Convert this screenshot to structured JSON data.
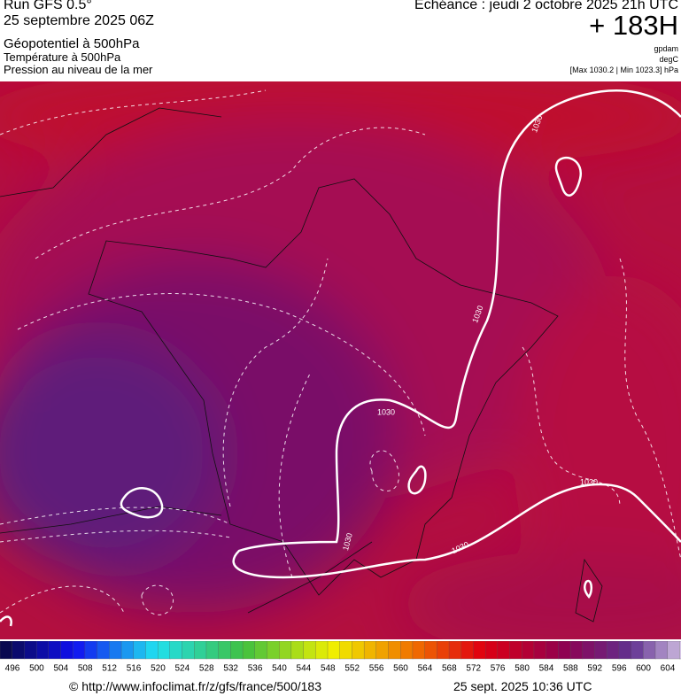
{
  "header": {
    "run": "Run GFS 0.5°",
    "run_date": "25 septembre 2025 06Z",
    "field_1": "Géopotentiel à 500hPa",
    "field_2": "Température à 500hPa",
    "field_3": "Pression au niveau de la mer",
    "forecast_time": "Echéance : jeudi 2 octobre 2025 21h UTC",
    "lead_time": "+ 183H",
    "unit_1": "gpdam",
    "unit_2": "degC",
    "pressure_range": "[Max 1030.2 | Min 1023.3] hPa"
  },
  "map": {
    "isobar_labels": [
      "1030",
      "1030",
      "1030",
      "1030",
      "1030",
      "1030"
    ]
  },
  "colorbar": {
    "labels": [
      496,
      500,
      504,
      508,
      512,
      516,
      520,
      524,
      528,
      532,
      536,
      540,
      544,
      548,
      552,
      556,
      560,
      564,
      568,
      572,
      576,
      580,
      584,
      588,
      592,
      596,
      600,
      604
    ]
  },
  "footer": {
    "source": "© http://www.infoclimat.fr/z/gfs/france/500/183",
    "generated": "25 sept. 2025 10:36 UTC"
  }
}
